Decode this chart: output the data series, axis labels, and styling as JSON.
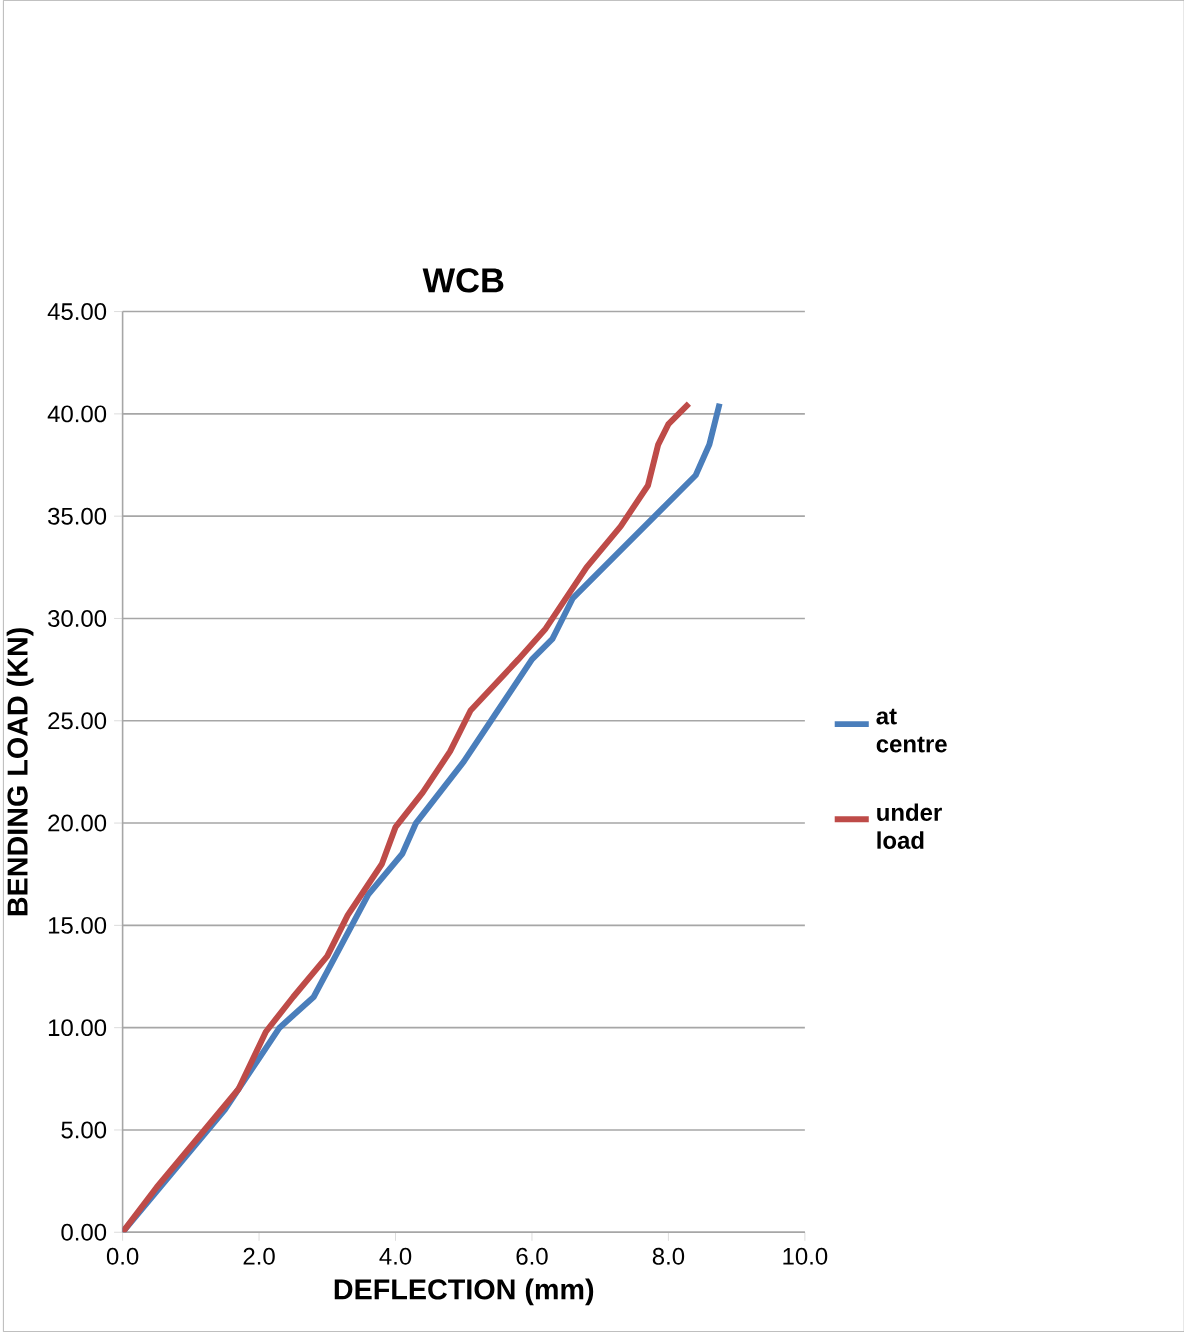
{
  "chart_data": {
    "type": "line",
    "title": "WCB",
    "xlabel": "DEFLECTION (mm)",
    "ylabel": "BENDING LOAD (KN)",
    "series": [
      {
        "name": "at centre",
        "color": "#4a7ebb",
        "x": [
          0,
          0.5,
          1,
          1.5,
          2,
          2.3,
          2.8,
          3.2,
          3.6,
          4.1,
          4.3,
          5,
          5.5,
          6,
          6.3,
          6.6,
          7.2,
          7.8,
          8.4,
          8.6,
          8.75
        ],
        "values": [
          0,
          2,
          4,
          6,
          8.5,
          10,
          11.5,
          14,
          16.5,
          18.5,
          20,
          23,
          25.5,
          28,
          29,
          31,
          33,
          35,
          37,
          38.5,
          40.5
        ]
      },
      {
        "name": "under load",
        "color": "#be4b48",
        "x": [
          0,
          0.5,
          1.2,
          1.7,
          2.1,
          2.5,
          3,
          3.3,
          3.8,
          4,
          4.4,
          4.8,
          5.1,
          5.8,
          6.2,
          6.8,
          7.3,
          7.7,
          7.85,
          8,
          8.3
        ],
        "values": [
          0,
          2.2,
          5,
          7,
          9.8,
          11.5,
          13.5,
          15.5,
          18,
          19.8,
          21.5,
          23.5,
          25.5,
          28,
          29.5,
          32.5,
          34.5,
          36.5,
          38.5,
          39.5,
          40.5
        ]
      }
    ],
    "xlim": [
      0,
      10
    ],
    "xticks": [
      {
        "value": 0,
        "label": "0.0"
      },
      {
        "value": 2,
        "label": "2.0"
      },
      {
        "value": 4,
        "label": "4.0"
      },
      {
        "value": 6,
        "label": "6.0"
      },
      {
        "value": 8,
        "label": "8.0"
      },
      {
        "value": 10,
        "label": "10.0"
      }
    ],
    "ylim": [
      0,
      45
    ],
    "yticks": [
      {
        "value": 0,
        "label": "0.00"
      },
      {
        "value": 5,
        "label": "5.00"
      },
      {
        "value": 10,
        "label": "10.00"
      },
      {
        "value": 15,
        "label": "15.00"
      },
      {
        "value": 20,
        "label": "20.00"
      },
      {
        "value": 25,
        "label": "25.00"
      },
      {
        "value": 30,
        "label": "30.00"
      },
      {
        "value": 35,
        "label": "35.00"
      },
      {
        "value": 40,
        "label": "40.00"
      },
      {
        "value": 45,
        "label": "45.00"
      }
    ],
    "grid": "y",
    "legend": "right",
    "marker": "none",
    "line_style": "solid"
  }
}
